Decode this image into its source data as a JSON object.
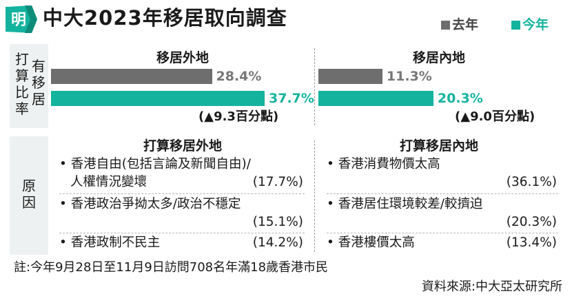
{
  "header": {
    "logo_char": "明",
    "title": "中大2023年移居取向調查",
    "legend": [
      {
        "label": "去年",
        "color": "#6e6e6e"
      },
      {
        "label": "今年",
        "color": "#14b39e"
      }
    ]
  },
  "colors": {
    "last_year": "#6e6e6e",
    "this_year": "#14b39e",
    "panel_bg": "#eef1f1"
  },
  "side_labels": {
    "plan_col1": "打算比率",
    "plan_col2": "有移居",
    "reason": "原因"
  },
  "chart_data": {
    "type": "bar",
    "orientation": "horizontal",
    "unit": "%",
    "xlim": [
      0,
      40
    ],
    "series_names": [
      "去年",
      "今年"
    ],
    "groups": [
      {
        "category": "移居外地",
        "values": {
          "去年": 28.4,
          "今年": 37.7
        },
        "value_labels": [
          "28.4%",
          "37.7%"
        ],
        "change": "(▲9.3百分點)"
      },
      {
        "category": "移居內地",
        "values": {
          "去年": 11.3,
          "今年": 20.3
        },
        "value_labels": [
          "11.3%",
          "20.3%"
        ],
        "change": "(▲9.0百分點)"
      }
    ]
  },
  "reasons": {
    "abroad": {
      "heading": "打算移居外地",
      "items": [
        {
          "lines": [
            "香港自由(包括言論及新聞自由)/",
            "人權情況變壞"
          ],
          "pct": "(17.7%)"
        },
        {
          "lines": [
            "香港政治爭拗太多/政治不穩定"
          ],
          "pct": "(15.1%)"
        },
        {
          "lines": [
            "香港政制不民主"
          ],
          "pct": "(14.2%)"
        }
      ]
    },
    "mainland": {
      "heading": "打算移居內地",
      "items": [
        {
          "lines": [
            "香港消費物價太高"
          ],
          "pct": "(36.1%)"
        },
        {
          "lines": [
            "香港居住環境較差/較擠迫"
          ],
          "pct": "(20.3%)"
        },
        {
          "lines": [
            "香港樓價太高"
          ],
          "pct": "(13.4%)"
        }
      ]
    }
  },
  "footer": {
    "note": "註:今年9月28日至11月9日訪問708名年滿18歲香港市民",
    "source": "資料來源:中大亞太研究所"
  }
}
